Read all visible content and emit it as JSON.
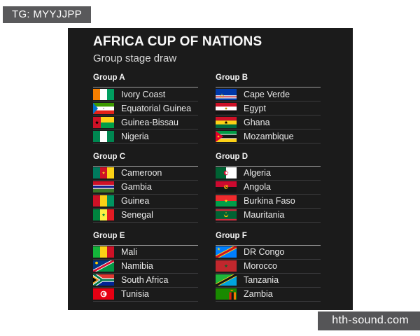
{
  "watermarks": {
    "top_left": "TG: MYYJJPP",
    "bottom_right": "hth-sound.com"
  },
  "card": {
    "title": "AFRICA CUP OF NATIONS",
    "subtitle": "Group stage draw"
  },
  "colors": {
    "page_bg": "#ffffff",
    "card_bg": "#1b1b1b",
    "tag_bg": "#59595b",
    "site_bg": "#555557",
    "header_rule": "#9c9c9c",
    "row_rule": "#3a3a3c"
  },
  "groups": [
    {
      "name": "Group A",
      "teams": [
        {
          "name": "Ivory Coast",
          "flag": "ivory-coast"
        },
        {
          "name": "Equatorial Guinea",
          "flag": "equatorial-guinea"
        },
        {
          "name": "Guinea-Bissau",
          "flag": "guinea-bissau"
        },
        {
          "name": "Nigeria",
          "flag": "nigeria"
        }
      ]
    },
    {
      "name": "Group B",
      "teams": [
        {
          "name": "Cape Verde",
          "flag": "cape-verde"
        },
        {
          "name": "Egypt",
          "flag": "egypt"
        },
        {
          "name": "Ghana",
          "flag": "ghana"
        },
        {
          "name": "Mozambique",
          "flag": "mozambique"
        }
      ]
    },
    {
      "name": "Group C",
      "teams": [
        {
          "name": "Cameroon",
          "flag": "cameroon"
        },
        {
          "name": "Gambia",
          "flag": "gambia"
        },
        {
          "name": "Guinea",
          "flag": "guinea"
        },
        {
          "name": "Senegal",
          "flag": "senegal"
        }
      ]
    },
    {
      "name": "Group D",
      "teams": [
        {
          "name": "Algeria",
          "flag": "algeria"
        },
        {
          "name": "Angola",
          "flag": "angola"
        },
        {
          "name": "Burkina Faso",
          "flag": "burkina-faso"
        },
        {
          "name": "Mauritania",
          "flag": "mauritania"
        }
      ]
    },
    {
      "name": "Group E",
      "teams": [
        {
          "name": "Mali",
          "flag": "mali"
        },
        {
          "name": "Namibia",
          "flag": "namibia"
        },
        {
          "name": "South Africa",
          "flag": "south-africa"
        },
        {
          "name": "Tunisia",
          "flag": "tunisia"
        }
      ]
    },
    {
      "name": "Group F",
      "teams": [
        {
          "name": "DR Congo",
          "flag": "dr-congo"
        },
        {
          "name": "Morocco",
          "flag": "morocco"
        },
        {
          "name": "Tanzania",
          "flag": "tanzania"
        },
        {
          "name": "Zambia",
          "flag": "zambia"
        }
      ]
    }
  ]
}
